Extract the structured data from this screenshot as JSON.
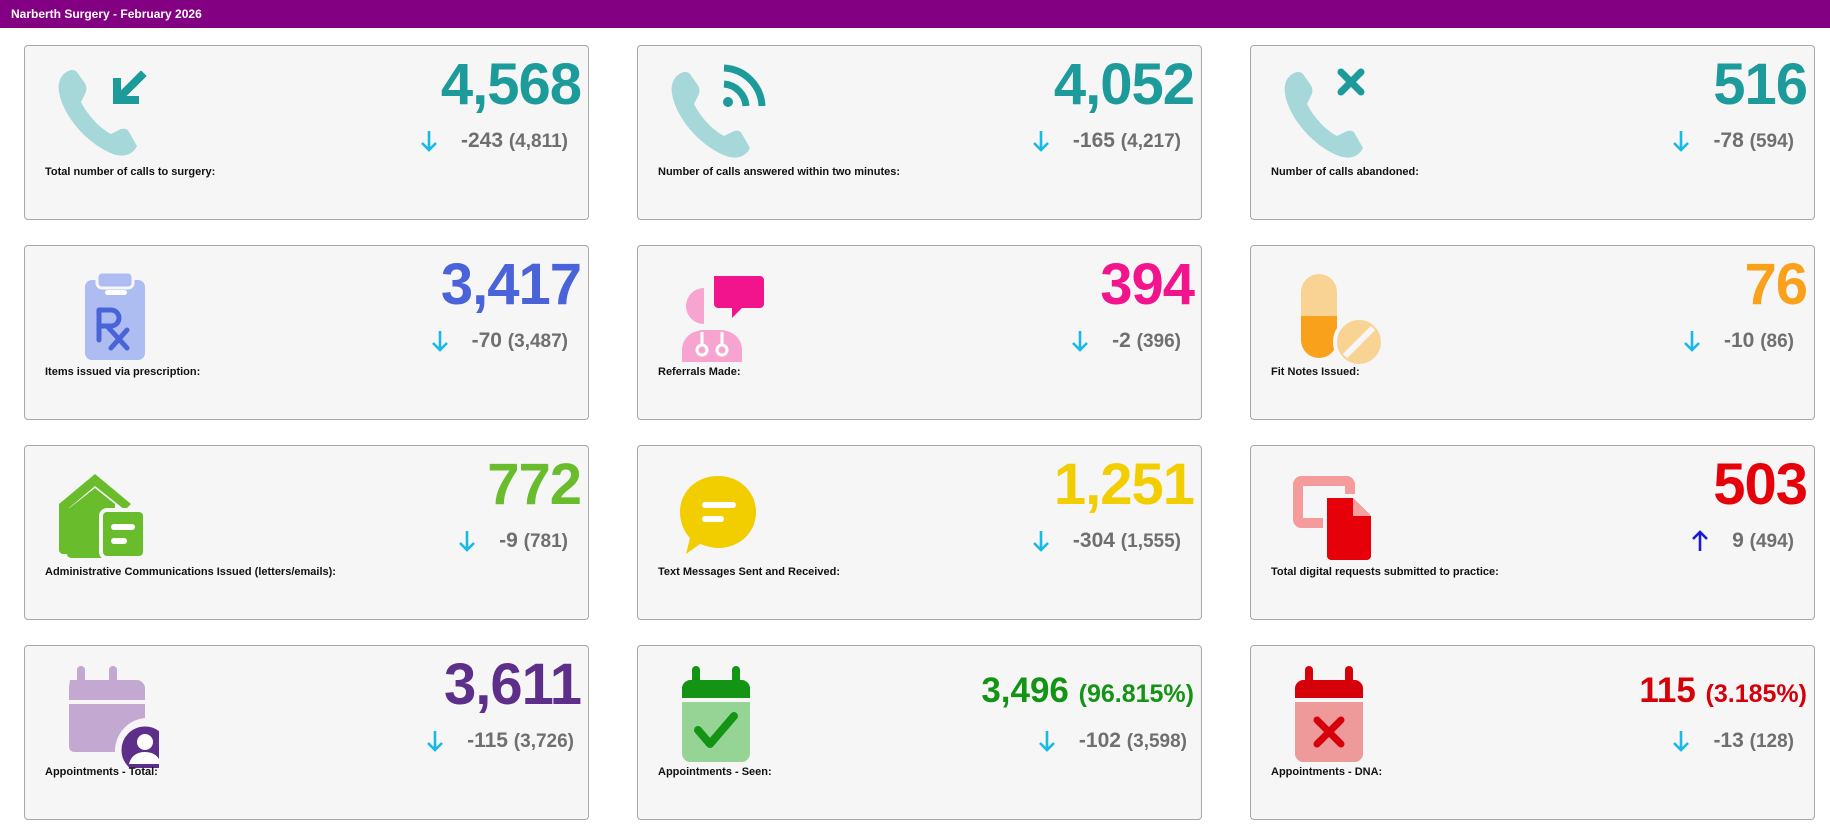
{
  "header": {
    "title": "Narberth Surgery - February 2026"
  },
  "colors": {
    "header": "#820081",
    "arrow_down": "#19b9e6",
    "arrow_up": "#1a1adb",
    "teal": "#1d9a9a",
    "blue": "#4a63d9",
    "pink": "#f2148c",
    "orange": "#f9a11b",
    "green": "#69bd2d",
    "yellow": "#f2cd00",
    "red": "#e6000a",
    "purple": "#5e2f8a",
    "dark_green": "#149414",
    "dark_red": "#d6000a"
  },
  "cards": [
    {
      "value": "4,568",
      "delta": "-243",
      "previous": "(4,811)",
      "direction": "down",
      "label": "Total number of calls to surgery:",
      "icon": "incoming-call-icon"
    },
    {
      "value": "4,052",
      "delta": "-165",
      "previous": "(4,217)",
      "direction": "down",
      "label": "Number of calls answered within two minutes:",
      "icon": "phone-signal-icon"
    },
    {
      "value": "516",
      "delta": "-78",
      "previous": "(594)",
      "direction": "down",
      "label": "Number of calls abandoned:",
      "icon": "missed-call-icon"
    },
    {
      "value": "3,417",
      "delta": "-70",
      "previous": "(3,487)",
      "direction": "down",
      "label": "Items issued via prescription:",
      "icon": "prescription-clipboard-icon"
    },
    {
      "value": "394",
      "delta": "-2",
      "previous": "(396)",
      "direction": "down",
      "label": "Referrals Made:",
      "icon": "doctor-chat-icon"
    },
    {
      "value": "76",
      "delta": "-10",
      "previous": "(86)",
      "direction": "down",
      "label": "Fit Notes Issued:",
      "icon": "pills-icon"
    },
    {
      "value": "772",
      "delta": "-9",
      "previous": "(781)",
      "direction": "down",
      "label": "Administrative Communications Issued (letters/emails):",
      "icon": "house-letter-icon"
    },
    {
      "value": "1,251",
      "delta": "-304",
      "previous": "(1,555)",
      "direction": "down",
      "label": "Text Messages Sent and Received:",
      "icon": "speech-bubble-icon"
    },
    {
      "value": "503",
      "delta": "9",
      "previous": "(494)",
      "direction": "up",
      "label": "Total digital requests submitted to practice:",
      "icon": "digital-document-icon"
    },
    {
      "value": "3,611",
      "delta": "-115",
      "previous": "(3,726)",
      "direction": "down",
      "label": "Appointments - Total:",
      "icon": "calendar-user-icon"
    },
    {
      "value": "3,496",
      "percent": "(96.815%)",
      "delta": "-102",
      "previous": "(3,598)",
      "direction": "down",
      "label": "Appointments - Seen:",
      "icon": "calendar-check-icon"
    },
    {
      "value": "115",
      "percent": "(3.185%)",
      "delta": "-13",
      "previous": "(128)",
      "direction": "down",
      "label": "Appointments - DNA:",
      "icon": "calendar-cross-icon"
    }
  ]
}
